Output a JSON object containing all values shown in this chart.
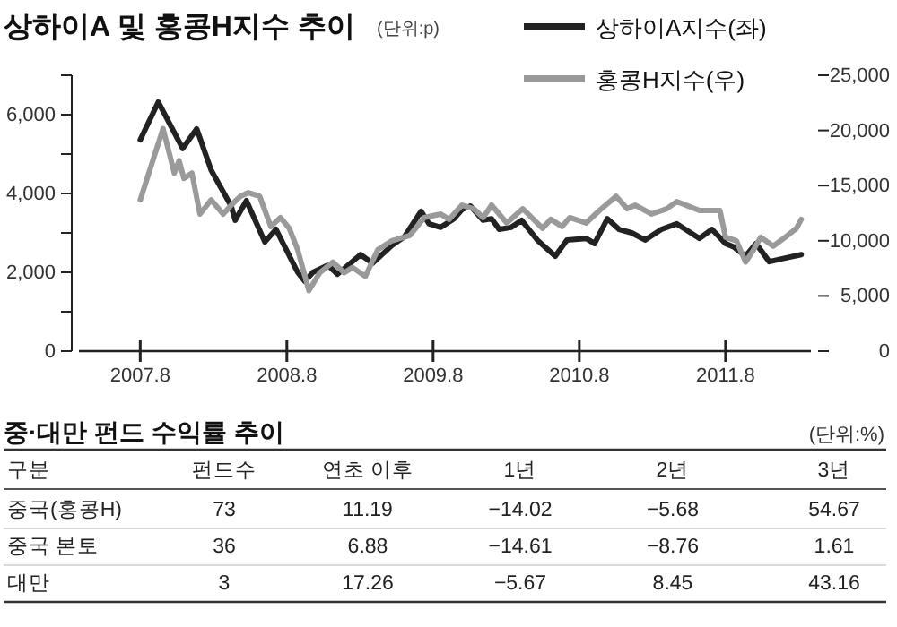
{
  "chart_data": [
    {
      "type": "line",
      "title": "상하이A 및 홍콩H지수 추이",
      "subtitle": "(단위:p)",
      "legend": "top right",
      "xlim": [
        "2007-03",
        "2012-03"
      ],
      "xticks": [
        {
          "value": "2007-08",
          "label": "2007.8"
        },
        {
          "value": "2008-08",
          "label": "2008.8"
        },
        {
          "value": "2009-08",
          "label": "2009.8"
        },
        {
          "value": "2010-08",
          "label": "2010.8"
        },
        {
          "value": "2011-08",
          "label": "2011.8"
        }
      ],
      "ylim": [
        0,
        7000
      ],
      "yticks": [
        0,
        {
          "value": 1000,
          "label": null
        },
        {
          "value": 2000,
          "label": "2,000"
        },
        {
          "value": 3000,
          "label": null
        },
        {
          "value": 4000,
          "label": "4,000"
        },
        {
          "value": 5000,
          "label": null
        },
        {
          "value": 6000,
          "label": "6,000"
        },
        {
          "value": 7000,
          "label": null
        }
      ],
      "y2lim": [
        0,
        25000
      ],
      "y2ticks": [
        0,
        {
          "value": 5000,
          "label": "5,000"
        },
        {
          "value": 10000,
          "label": "10,000"
        },
        {
          "value": 15000,
          "label": "15,000"
        },
        {
          "value": 20000,
          "label": "20,000"
        },
        {
          "value": 25000,
          "label": "25,000"
        }
      ],
      "series": [
        {
          "name": "상하이A지수(좌)",
          "color": "#222222",
          "x": [
            "2007-08-01",
            "2007-09-15",
            "2007-11-15",
            "2007-12-20",
            "2008-01-25",
            "2008-03-15",
            "2008-03-25",
            "2008-04-22",
            "2008-06-07",
            "2008-07-05",
            "2008-08-28",
            "2008-09-15",
            "2008-10-05",
            "2008-11-12",
            "2008-12-05",
            "2009-02-01",
            "2009-03-03",
            "2009-04-20",
            "2009-05-22",
            "2009-07-02",
            "2009-07-22",
            "2009-08-20",
            "2009-09-22",
            "2009-10-12",
            "2009-11-02",
            "2009-12-04",
            "2009-12-25",
            "2010-01-13",
            "2010-02-12",
            "2010-03-10",
            "2010-04-18",
            "2010-06-02",
            "2010-07-01",
            "2010-08-18",
            "2010-09-08",
            "2010-10-10",
            "2010-11-08",
            "2010-12-10",
            "2011-01-12",
            "2011-02-22",
            "2011-04-01",
            "2011-05-28",
            "2011-06-28",
            "2011-08-01",
            "2011-08-22",
            "2011-09-20",
            "2011-10-16",
            "2011-11-18",
            "2011-12-28",
            "2012-02-06"
          ],
          "values": [
            5360,
            6320,
            5140,
            5640,
            4590,
            3680,
            3320,
            3820,
            2770,
            3090,
            2000,
            1770,
            2000,
            2180,
            1950,
            2450,
            2230,
            2680,
            2910,
            3550,
            3230,
            3140,
            3360,
            3590,
            3680,
            3320,
            3360,
            3090,
            3140,
            3320,
            2820,
            2410,
            2820,
            2860,
            2730,
            3360,
            3090,
            3000,
            2820,
            3090,
            3230,
            2860,
            3090,
            2730,
            2640,
            2410,
            2730,
            2270,
            2360,
            2450
          ]
        },
        {
          "name": "홍콩H지수(우)",
          "color": "#9a9a9a",
          "axis": "y2",
          "x": [
            "2007-08-01",
            "2007-09-27",
            "2007-10-25",
            "2007-11-06",
            "2007-11-18",
            "2007-12-08",
            "2007-12-28",
            "2008-01-25",
            "2008-02-24",
            "2008-03-15",
            "2008-04-07",
            "2008-04-27",
            "2008-05-25",
            "2008-06-22",
            "2008-07-16",
            "2008-08-07",
            "2008-08-28",
            "2008-09-25",
            "2008-10-22",
            "2008-11-24",
            "2008-12-22",
            "2009-01-12",
            "2009-02-13",
            "2009-03-16",
            "2009-04-20",
            "2009-06-04",
            "2009-07-10",
            "2009-08-20",
            "2009-09-10",
            "2009-10-12",
            "2009-11-10",
            "2009-12-04",
            "2009-12-25",
            "2010-02-01",
            "2010-03-13",
            "2010-05-01",
            "2010-05-22",
            "2010-06-19",
            "2010-07-08",
            "2010-08-18",
            "2010-09-20",
            "2010-11-01",
            "2010-11-28",
            "2010-12-19",
            "2011-01-28",
            "2011-03-07",
            "2011-04-01",
            "2011-05-28",
            "2011-07-18",
            "2011-08-01",
            "2011-08-28",
            "2011-09-20",
            "2011-10-10",
            "2011-10-28",
            "2011-11-28",
            "2011-12-28",
            "2012-01-25",
            "2012-02-06"
          ],
          "values": [
            13700,
            20160,
            16130,
            17260,
            15650,
            16130,
            12420,
            13710,
            12420,
            13230,
            14030,
            14360,
            14030,
            11290,
            12100,
            11130,
            9190,
            5480,
            7100,
            8070,
            7100,
            7580,
            6770,
            9190,
            10000,
            10480,
            12100,
            12420,
            11940,
            13230,
            12900,
            12100,
            13230,
            11610,
            12900,
            11130,
            11940,
            11290,
            12100,
            11610,
            12740,
            14030,
            12900,
            13230,
            12420,
            12900,
            13550,
            12740,
            12740,
            10320,
            10000,
            8070,
            9190,
            10320,
            9520,
            10320,
            11130,
            11940
          ]
        }
      ]
    },
    {
      "type": "heatmap",
      "title": "중·대만 펀드 수익률 추이",
      "subtitle": "(단위:%)",
      "ylabel": "구분",
      "data_labels": true,
      "categories": [
        "펀드수",
        "연초 이후",
        "1년",
        "2년",
        "3년"
      ],
      "y_categories": [
        "중국(홍콩H)",
        "중국 본토",
        "대만"
      ],
      "cells": [
        [
          73,
          11.19,
          -14.02,
          -5.68,
          54.67
        ],
        [
          36,
          6.88,
          -14.61,
          -8.76,
          1.61
        ],
        [
          3,
          17.26,
          -5.67,
          8.45,
          43.16
        ]
      ]
    }
  ]
}
